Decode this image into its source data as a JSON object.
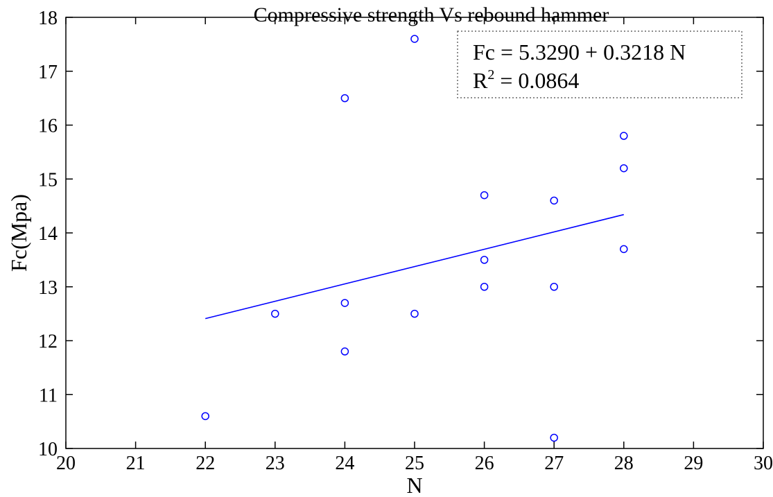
{
  "chart_data": {
    "type": "scatter",
    "title": "Compressive strength Vs rebound hammer",
    "xlabel": "N",
    "ylabel": "Fc(Mpa)",
    "xlim": [
      20,
      30
    ],
    "ylim": [
      10,
      18
    ],
    "x_ticks": [
      "20",
      "21",
      "22",
      "23",
      "24",
      "25",
      "26",
      "27",
      "28",
      "29",
      "30"
    ],
    "y_ticks": [
      "10",
      "11",
      "12",
      "13",
      "14",
      "15",
      "16",
      "17",
      "18"
    ],
    "grid": false,
    "marker_color": "#0000ff",
    "line_color": "#0000ff",
    "points": [
      {
        "x": 22,
        "y": 10.6
      },
      {
        "x": 23,
        "y": 12.5
      },
      {
        "x": 24,
        "y": 16.5
      },
      {
        "x": 24,
        "y": 12.7
      },
      {
        "x": 24,
        "y": 11.8
      },
      {
        "x": 25,
        "y": 17.6
      },
      {
        "x": 25,
        "y": 12.5
      },
      {
        "x": 26,
        "y": 14.7
      },
      {
        "x": 26,
        "y": 13.5
      },
      {
        "x": 26,
        "y": 13.0
      },
      {
        "x": 27,
        "y": 14.6
      },
      {
        "x": 27,
        "y": 13.0
      },
      {
        "x": 27,
        "y": 10.2
      },
      {
        "x": 28,
        "y": 15.8
      },
      {
        "x": 28,
        "y": 15.2
      },
      {
        "x": 28,
        "y": 13.7
      }
    ],
    "fit_line": {
      "x": [
        22,
        28
      ],
      "y": [
        12.41,
        14.34
      ]
    },
    "annotation": {
      "equation": "Fc = 5.3290 + 0.3218 N",
      "r2_prefix": "R",
      "r2_sup": "2",
      "r2_suffix": " = 0.0864",
      "placement": "top-right"
    }
  }
}
